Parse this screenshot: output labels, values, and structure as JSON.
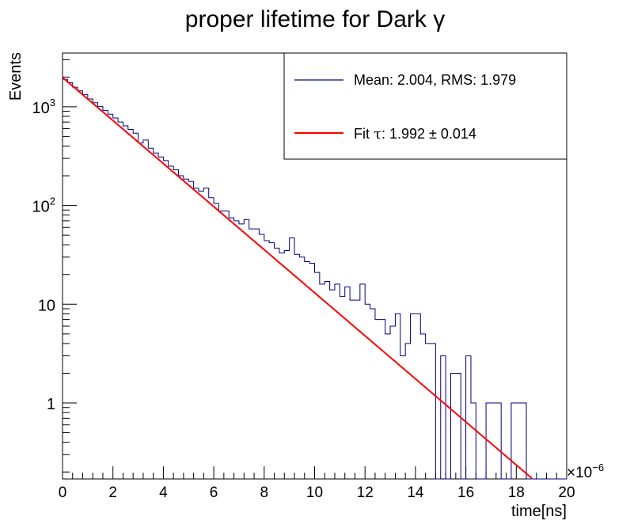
{
  "chart_data": {
    "type": "line",
    "title": "proper lifetime for Dark γ",
    "xlabel": "time[ns]",
    "ylabel": "Events",
    "x_multiplier": "×10",
    "x_multiplier_exp": "−6",
    "x_scale": 1e-06,
    "xlim": [
      0,
      20
    ],
    "ylim": [
      0.17,
      3500
    ],
    "yscale": "log",
    "x_ticks": [
      0,
      2,
      4,
      6,
      8,
      10,
      12,
      14,
      16,
      18,
      20
    ],
    "x_tick_labels": [
      "0",
      "2",
      "4",
      "6",
      "8",
      "10",
      "12",
      "14",
      "16",
      "18",
      "20"
    ],
    "y_ticks": [
      {
        "value": 1000,
        "base": "10",
        "exp": "3"
      },
      {
        "value": 100,
        "base": "10",
        "exp": "2"
      },
      {
        "value": 10,
        "base": "10",
        "exp": ""
      },
      {
        "value": 1,
        "base": "1",
        "exp": ""
      }
    ],
    "legend": {
      "position": "top-right",
      "entries": [
        {
          "label": "Mean: 2.004, RMS: 1.979",
          "color": "#000080"
        },
        {
          "label_prefix": "Fit ",
          "label_tau": "τ",
          "label_rest": ": 1.992 ± 0.014",
          "color": "#ff0000"
        }
      ]
    },
    "series": [
      {
        "kind": "histogram",
        "color": "#000080",
        "bin_width": 0.2,
        "x_start": 0,
        "values": [
          1900,
          1750,
          1580,
          1450,
          1330,
          1200,
          1100,
          1010,
          920,
          840,
          770,
          700,
          640,
          590,
          540,
          430,
          460,
          380,
          340,
          310,
          285,
          250,
          230,
          200,
          185,
          175,
          150,
          140,
          150,
          120,
          105,
          88,
          88,
          75,
          70,
          65,
          72,
          58,
          58,
          51,
          44,
          42,
          37,
          33,
          35,
          47,
          32,
          30,
          27,
          26,
          21,
          16,
          17,
          14,
          16,
          12,
          15,
          11,
          11,
          16,
          10,
          9,
          7,
          7,
          5,
          6,
          8,
          3,
          4,
          8,
          8,
          5,
          4,
          4,
          0,
          3,
          0,
          2,
          2,
          0,
          3,
          1,
          0,
          0,
          1,
          1,
          1,
          0,
          0,
          1,
          1,
          1,
          0,
          0,
          0,
          0,
          0,
          0,
          0,
          0
        ]
      },
      {
        "kind": "fit",
        "name": "Fit",
        "color": "#ff0000",
        "function": "exponential",
        "amplitude": 1980,
        "tau": 1.992,
        "x_range": [
          0,
          19
        ]
      }
    ]
  }
}
